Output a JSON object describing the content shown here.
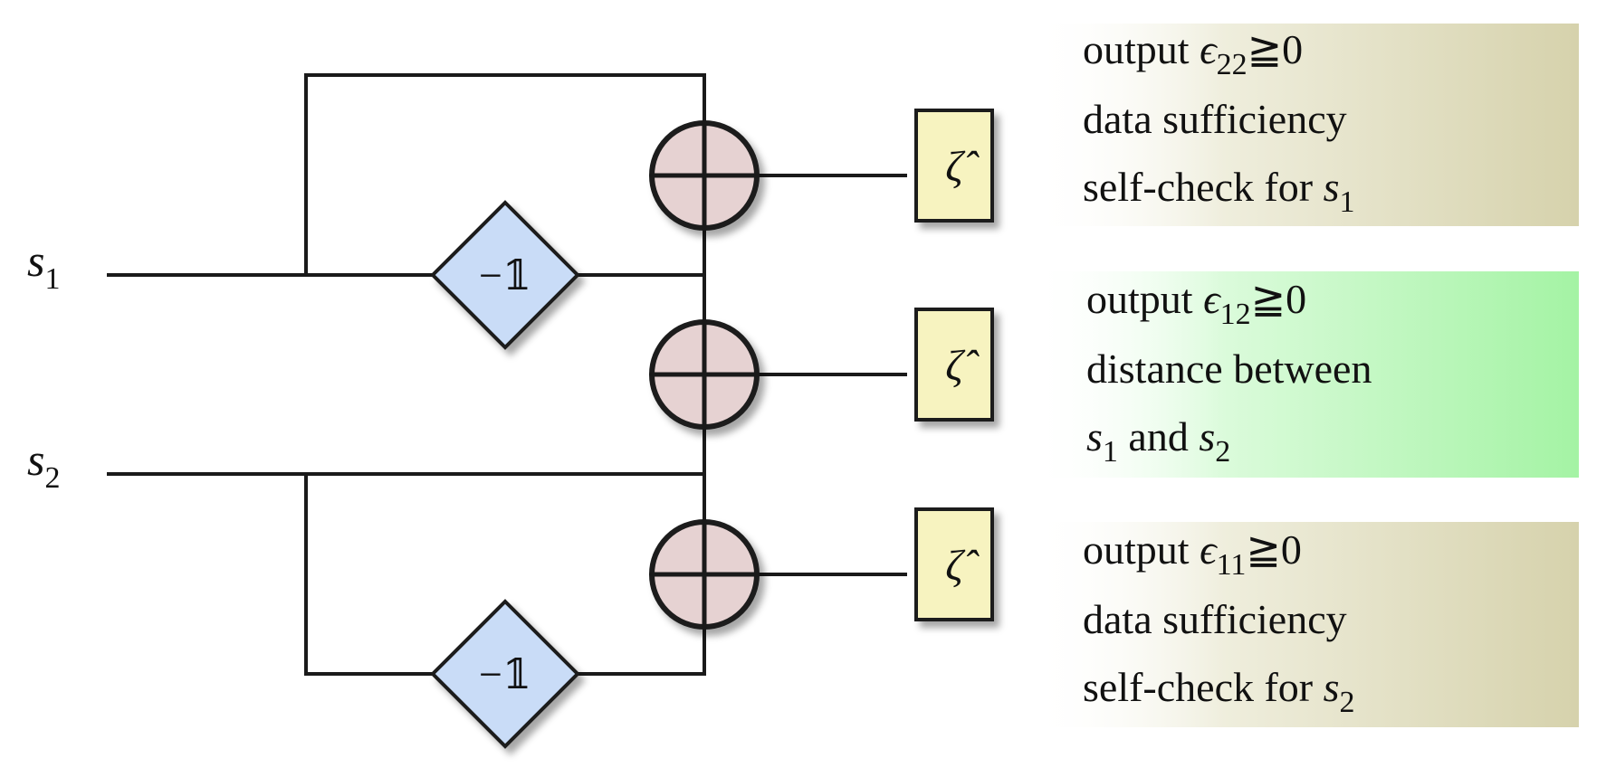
{
  "inputs": [
    {
      "symbol": "s",
      "subscript": "1"
    },
    {
      "symbol": "s",
      "subscript": "2"
    }
  ],
  "negation_label": "−𝟙",
  "operator_label": "ζ̂",
  "outputs": [
    {
      "prefix": "output ",
      "epsilon": "ϵ",
      "subscript": "22",
      "relation": "≧",
      "value": "0",
      "line2": "data sufficiency",
      "line3_text": "self-check for ",
      "line3_symbol": "s",
      "line3_subscript": "1",
      "bg_color": "#d9d5b0"
    },
    {
      "prefix": "output ",
      "epsilon": "ϵ",
      "subscript": "12",
      "relation": "≧",
      "value": "0",
      "line2": "distance between",
      "line3_symbol_a": "s",
      "line3_subscript_a": "1",
      "line3_mid": " and ",
      "line3_symbol_b": "s",
      "line3_subscript_b": "2",
      "bg_color": "#a8f5a8"
    },
    {
      "prefix": "output ",
      "epsilon": "ϵ",
      "subscript": "11",
      "relation": "≧",
      "value": "0",
      "line2": "data sufficiency",
      "line3_text": "self-check for ",
      "line3_symbol": "s",
      "line3_subscript": "2",
      "bg_color": "#d9d5b0"
    }
  ],
  "colors": {
    "wire": "#1a1a1a",
    "adder_fill": "#e6d2d2",
    "negation_fill": "#c9dcf7",
    "operator_fill": "#f7f3c0"
  }
}
